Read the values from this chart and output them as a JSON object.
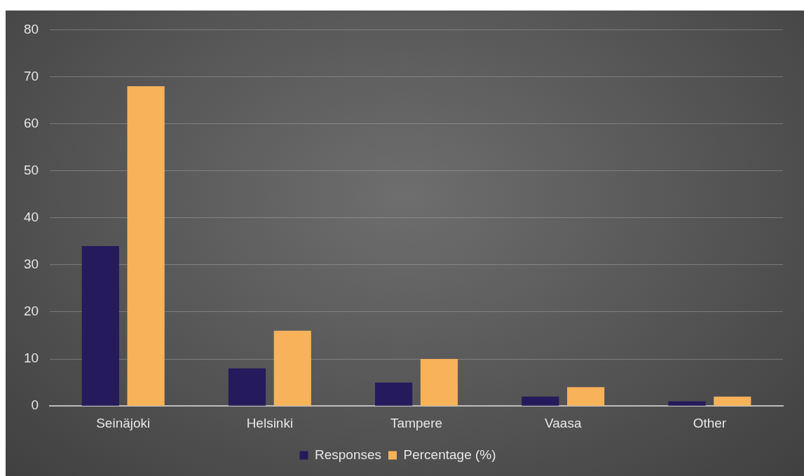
{
  "chart_data": {
    "type": "bar",
    "categories": [
      "Seinäjoki",
      "Helsinki",
      "Tampere",
      "Vaasa",
      "Other"
    ],
    "series": [
      {
        "name": "Responses",
        "color": "#241a5c",
        "values": [
          34,
          8,
          5,
          2,
          1
        ]
      },
      {
        "name": "Percentage (%)",
        "color": "#f7b25a",
        "values": [
          68,
          16,
          10,
          4,
          2
        ]
      }
    ],
    "ylim": [
      0,
      80
    ],
    "yticks": [
      0,
      10,
      20,
      30,
      40,
      50,
      60,
      70,
      80
    ],
    "grid": "y",
    "legend": "bottom"
  }
}
